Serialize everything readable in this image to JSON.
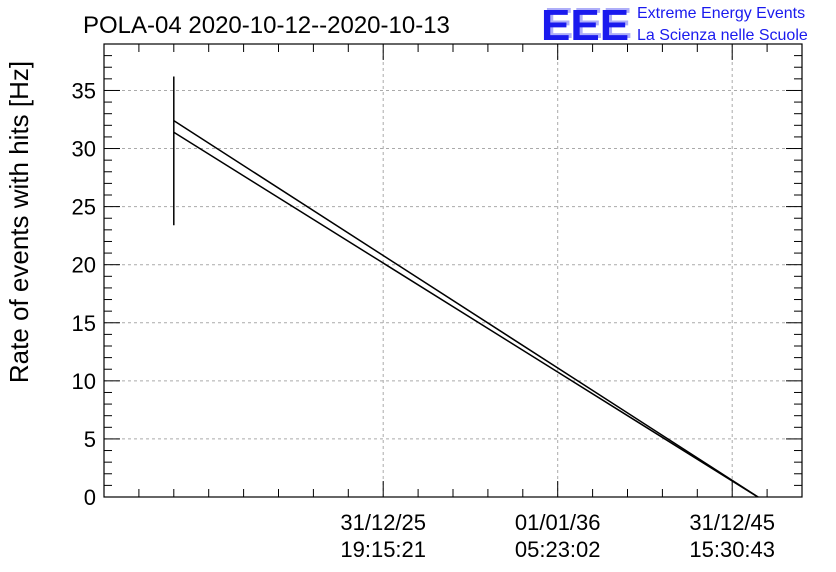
{
  "logo": {
    "mark": "EEE",
    "line1": "Extreme Energy Events",
    "line2": "La Scienza nelle Scuole",
    "color": "#1a1aee"
  },
  "chart_data": {
    "type": "line",
    "title": "POLA-04 2020-10-12--2020-10-13",
    "ylabel": "Rate of events with hits [Hz]",
    "xlabel": "",
    "ylim": [
      0,
      39
    ],
    "yticks": [
      0,
      5,
      10,
      15,
      20,
      25,
      30,
      35
    ],
    "xticks": [
      {
        "date": "31/12/25",
        "time": "19:15:21"
      },
      {
        "date": "01/01/36",
        "time": "05:23:02"
      },
      {
        "date": "31/12/45",
        "time": "15:30:43"
      }
    ],
    "grid": true,
    "series": [
      {
        "x": [
          1.0,
          9.5
        ],
        "y": [
          32.4,
          -0.5
        ]
      },
      {
        "x": [
          1.0,
          9.5
        ],
        "y": [
          31.4,
          -0.5
        ]
      }
    ],
    "error_bar": {
      "x": 1.0,
      "y_low": 23.4,
      "y_high": 36.2
    }
  }
}
